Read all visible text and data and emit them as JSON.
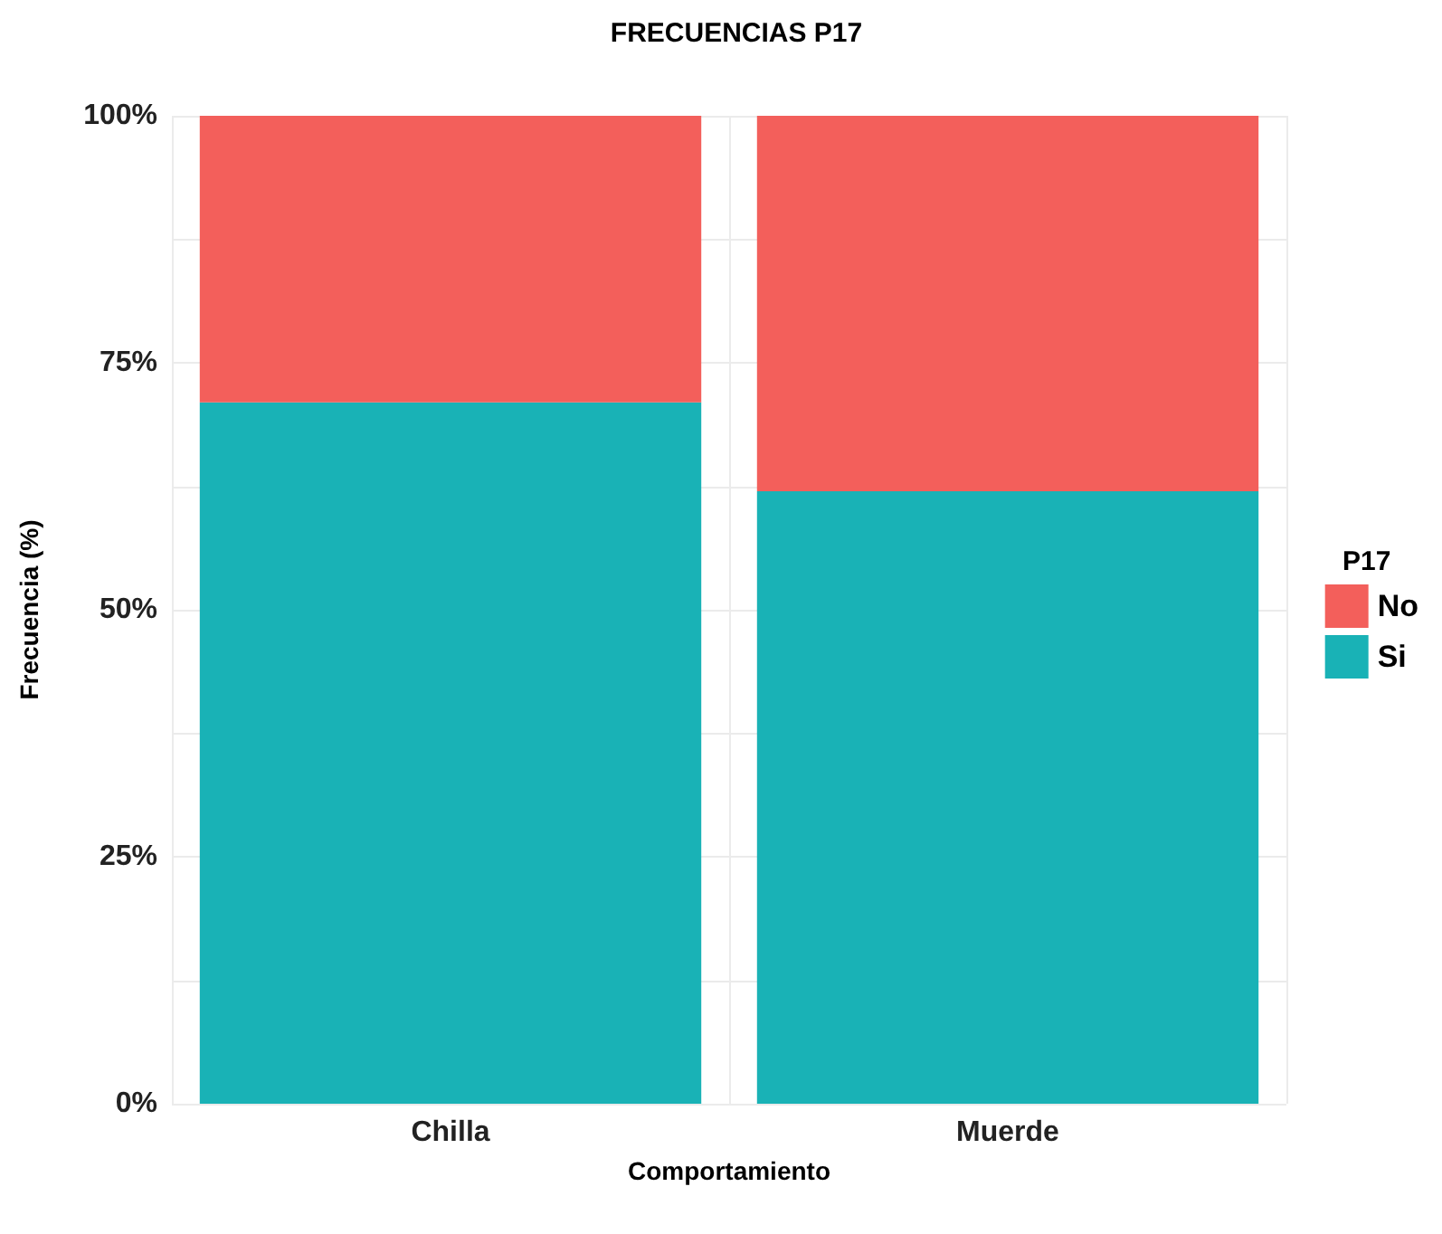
{
  "chart_data": {
    "type": "bar",
    "title": "FRECUENCIAS P17",
    "xlabel": "Comportamiento",
    "ylabel": "Frecuencia (%)",
    "legend_title": "P17",
    "categories": [
      "Chilla",
      "Muerde"
    ],
    "series": [
      {
        "name": "Si",
        "color": "#19b2b6",
        "values": [
          71,
          62
        ]
      },
      {
        "name": "No",
        "color": "#f35f5b",
        "values": [
          29,
          38
        ]
      }
    ],
    "stacked": true,
    "ylim": [
      0,
      100
    ],
    "yticks": [
      {
        "value": 0,
        "label": "0%"
      },
      {
        "value": 12.5,
        "label": null
      },
      {
        "value": 25,
        "label": "25%"
      },
      {
        "value": 37.5,
        "label": null
      },
      {
        "value": 50,
        "label": "50%"
      },
      {
        "value": 62.5,
        "label": null
      },
      {
        "value": 75,
        "label": "75%"
      },
      {
        "value": 87.5,
        "label": null
      },
      {
        "value": 100,
        "label": "100%"
      }
    ],
    "grid": true,
    "legend": "right"
  }
}
